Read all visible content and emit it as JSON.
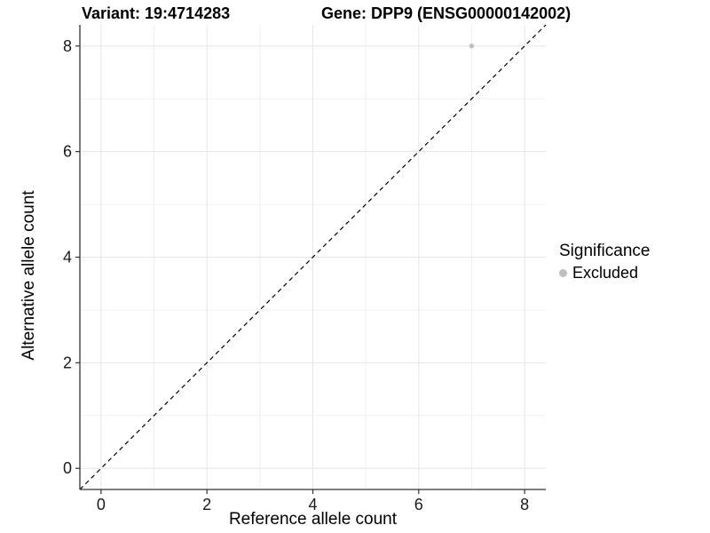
{
  "titles": {
    "variant": "Variant: 19:4714283",
    "gene": "Gene: DPP9 (ENSG00000142002)"
  },
  "axes": {
    "x_title": "Reference allele count",
    "y_title": "Alternative allele count"
  },
  "legend": {
    "title": "Significance",
    "items": [
      {
        "label": "Excluded",
        "color": "#bebebe"
      }
    ]
  },
  "chart_data": {
    "type": "scatter",
    "title": "Variant: 19:4714283 | Gene: DPP9 (ENSG00000142002)",
    "xlabel": "Reference allele count",
    "ylabel": "Alternative allele count",
    "xlim": [
      -0.4,
      8.4
    ],
    "ylim": [
      -0.4,
      8.4
    ],
    "x_ticks": [
      0,
      2,
      4,
      6,
      8
    ],
    "y_ticks": [
      0,
      2,
      4,
      6,
      8
    ],
    "minor_grid_step": 1,
    "grid": true,
    "legend_position": "right",
    "series": [
      {
        "name": "Excluded",
        "color": "#bebebe",
        "points": [
          {
            "x": 7,
            "y": 8
          }
        ]
      }
    ],
    "reference_line": {
      "type": "identity",
      "slope": 1,
      "intercept": 0,
      "style": "dashed",
      "color": "#000000"
    }
  },
  "colors": {
    "background": "#ffffff",
    "grid_major": "#e6e6e6",
    "grid_minor": "#f0f0f0",
    "axis_line": "#333333",
    "tick_label": "#1a1a1a",
    "point": "#bebebe"
  }
}
